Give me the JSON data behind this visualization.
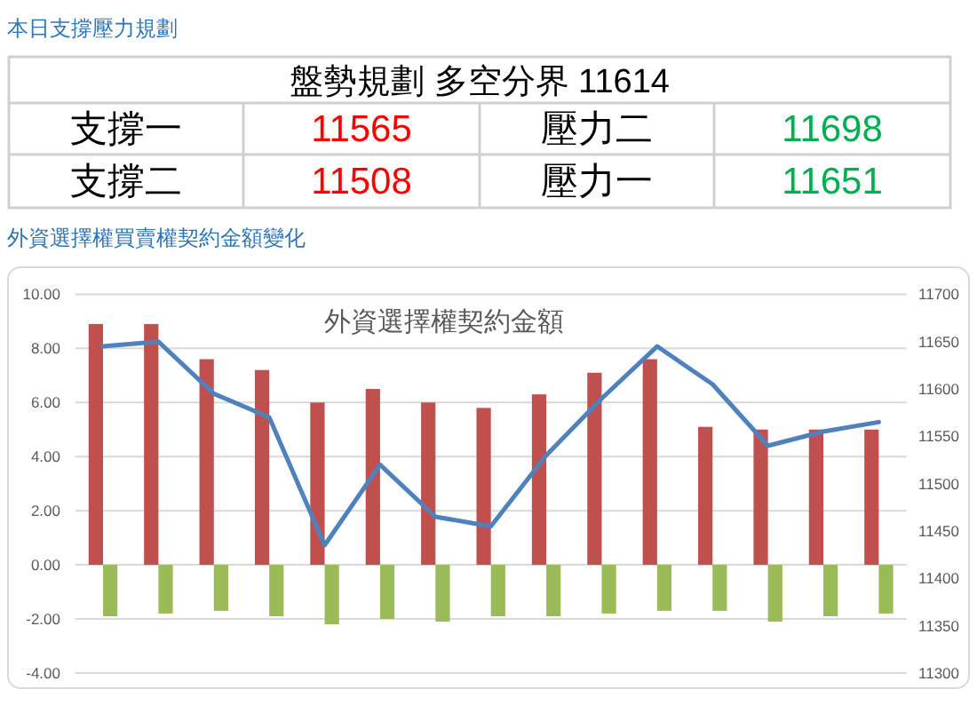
{
  "chart_data": [
    {
      "type": "other",
      "title": "本日支撐壓力規劃",
      "annotations": [
        "盤勢規劃 多空分界 11614",
        "支撐一",
        "11565",
        "壓力二",
        "11698",
        "支撐二",
        "11508",
        "壓力一",
        "11651"
      ],
      "colors": [
        "#000000",
        "#000000",
        "#ff0000",
        "#000000",
        "#00b050",
        "#000000",
        "#ff0000",
        "#000000",
        "#00b050"
      ]
    },
    {
      "type": "bar",
      "title": "外資選擇權契約金額",
      "subtitle": "外資選擇權買賣權契約金額變化",
      "categories": [
        null,
        null,
        null,
        null,
        null,
        null,
        null,
        null,
        null,
        null,
        null,
        null,
        null,
        null,
        null
      ],
      "series": [
        {
          "color": "#c0504d",
          "values": [
            8.9,
            8.9,
            7.6,
            7.2,
            6.0,
            6.5,
            6.0,
            5.8,
            6.3,
            7.1,
            7.6,
            5.1,
            5.0,
            5.0,
            5.0
          ]
        },
        {
          "color": "#9bbb59",
          "values": [
            -1.9,
            -1.8,
            -1.7,
            -1.9,
            -2.2,
            -2.0,
            -2.1,
            -1.9,
            -1.9,
            -1.8,
            -1.7,
            -1.7,
            -2.1,
            -1.9,
            -1.8
          ]
        },
        {
          "type": "line",
          "axis": "y2",
          "color": "#4f81bd",
          "values": [
            11645,
            11650,
            11595,
            11570,
            11435,
            11520,
            11465,
            11455,
            11530,
            11590,
            11645,
            11605,
            11540,
            11555,
            11565
          ]
        }
      ],
      "ylim": [
        -4,
        10
      ],
      "yticks": [
        {
          "value": -4,
          "label": "-4.00"
        },
        {
          "value": -2,
          "label": "-2.00"
        },
        {
          "value": 0,
          "label": "0.00"
        },
        {
          "value": 2,
          "label": "2.00"
        },
        {
          "value": 4,
          "label": "4.00"
        },
        {
          "value": 6,
          "label": "6.00"
        },
        {
          "value": 8,
          "label": "8.00"
        },
        {
          "value": 10,
          "label": "10.00"
        }
      ],
      "y2lim": [
        11300,
        11700
      ],
      "y2ticks": [
        11300,
        11350,
        11400,
        11450,
        11500,
        11550,
        11600,
        11650,
        11700
      ],
      "grid": "y"
    }
  ]
}
